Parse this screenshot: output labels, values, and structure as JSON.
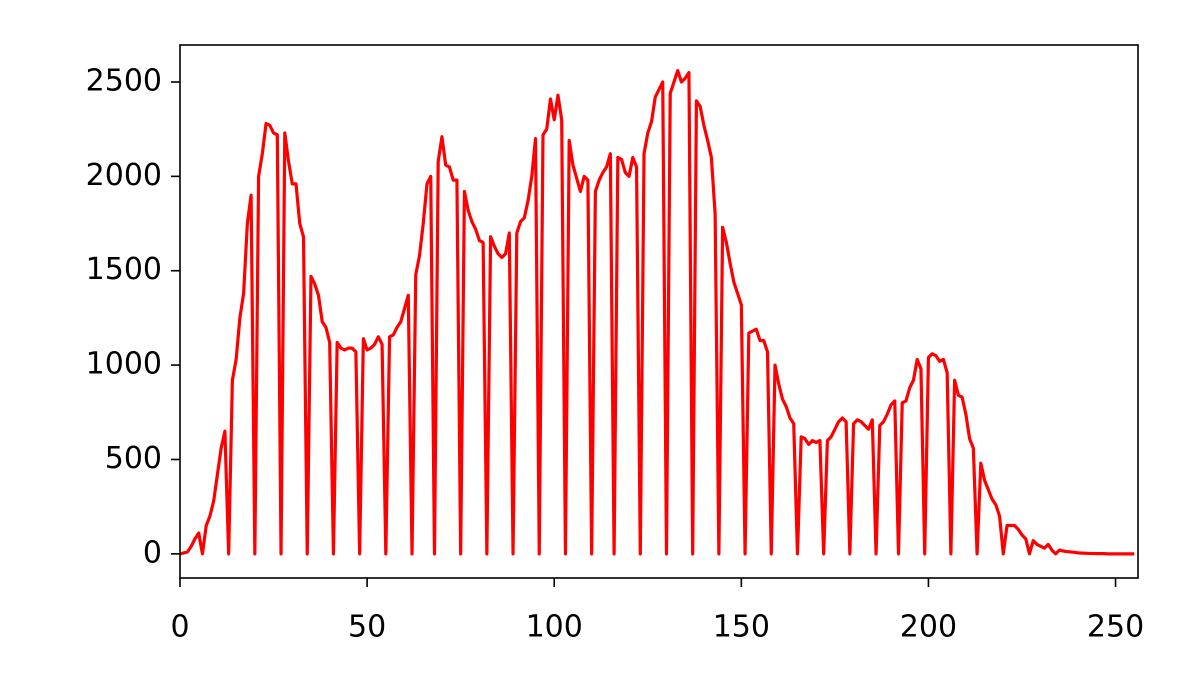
{
  "chart_data": {
    "type": "line",
    "color": "#ff0000",
    "x": [
      0,
      1,
      2,
      3,
      4,
      5,
      6,
      7,
      8,
      9,
      10,
      11,
      12,
      13,
      14,
      15,
      16,
      17,
      18,
      19,
      20,
      21,
      22,
      23,
      24,
      25,
      26,
      27,
      28,
      29,
      30,
      31,
      32,
      33,
      34,
      35,
      36,
      37,
      38,
      39,
      40,
      41,
      42,
      43,
      44,
      45,
      46,
      47,
      48,
      49,
      50,
      51,
      52,
      53,
      54,
      55,
      56,
      57,
      58,
      59,
      60,
      61,
      62,
      63,
      64,
      65,
      66,
      67,
      68,
      69,
      70,
      71,
      72,
      73,
      74,
      75,
      76,
      77,
      78,
      79,
      80,
      81,
      82,
      83,
      84,
      85,
      86,
      87,
      88,
      89,
      90,
      91,
      92,
      93,
      94,
      95,
      96,
      97,
      98,
      99,
      100,
      101,
      102,
      103,
      104,
      105,
      106,
      107,
      108,
      109,
      110,
      111,
      112,
      113,
      114,
      115,
      116,
      117,
      118,
      119,
      120,
      121,
      122,
      123,
      124,
      125,
      126,
      127,
      128,
      129,
      130,
      131,
      132,
      133,
      134,
      135,
      136,
      137,
      138,
      139,
      140,
      141,
      142,
      143,
      144,
      145,
      146,
      147,
      148,
      149,
      150,
      151,
      152,
      153,
      154,
      155,
      156,
      157,
      158,
      159,
      160,
      161,
      162,
      163,
      164,
      165,
      166,
      167,
      168,
      169,
      170,
      171,
      172,
      173,
      174,
      175,
      176,
      177,
      178,
      179,
      180,
      181,
      182,
      183,
      184,
      185,
      186,
      187,
      188,
      189,
      190,
      191,
      192,
      193,
      194,
      195,
      196,
      197,
      198,
      199,
      200,
      201,
      202,
      203,
      204,
      205,
      206,
      207,
      208,
      209,
      210,
      211,
      212,
      213,
      214,
      215,
      216,
      217,
      218,
      219,
      220,
      221,
      222,
      223,
      224,
      225,
      226,
      227,
      228,
      229,
      230,
      231,
      232,
      233,
      234,
      235,
      236,
      237,
      238,
      239,
      240,
      241,
      242,
      243,
      244,
      245,
      246,
      247,
      248,
      249,
      250,
      251,
      252,
      253,
      254,
      255
    ],
    "values": [
      0,
      5,
      10,
      40,
      80,
      110,
      0,
      150,
      200,
      280,
      420,
      560,
      650,
      0,
      920,
      1030,
      1250,
      1380,
      1750,
      1900,
      0,
      2000,
      2120,
      2280,
      2270,
      2230,
      2220,
      0,
      2230,
      2080,
      1960,
      1960,
      1750,
      1680,
      0,
      1470,
      1430,
      1370,
      1230,
      1200,
      1120,
      0,
      1120,
      1090,
      1080,
      1090,
      1090,
      1070,
      0,
      1140,
      1080,
      1090,
      1110,
      1150,
      1110,
      0,
      1150,
      1160,
      1200,
      1230,
      1300,
      1370,
      0,
      1480,
      1580,
      1750,
      1960,
      2000,
      0,
      2080,
      2210,
      2060,
      2050,
      1980,
      1980,
      0,
      1920,
      1820,
      1760,
      1720,
      1660,
      1650,
      0,
      1680,
      1630,
      1590,
      1570,
      1590,
      1700,
      0,
      1700,
      1760,
      1780,
      1870,
      2000,
      2200,
      0,
      2220,
      2250,
      2410,
      2300,
      2430,
      2300,
      0,
      2190,
      2060,
      1990,
      1920,
      2000,
      1980,
      0,
      1920,
      1980,
      2020,
      2050,
      2120,
      0,
      2100,
      2090,
      2020,
      2000,
      2100,
      2050,
      0,
      2120,
      2230,
      2290,
      2420,
      2460,
      2500,
      0,
      2440,
      2500,
      2560,
      2500,
      2520,
      2550,
      0,
      2400,
      2370,
      2270,
      2190,
      2100,
      1800,
      0,
      1730,
      1650,
      1540,
      1440,
      1380,
      1320,
      0,
      1170,
      1180,
      1190,
      1130,
      1130,
      1070,
      0,
      1000,
      900,
      820,
      780,
      720,
      690,
      0,
      620,
      610,
      580,
      600,
      590,
      600,
      0,
      600,
      620,
      660,
      700,
      720,
      700,
      0,
      690,
      710,
      700,
      680,
      660,
      710,
      0,
      680,
      700,
      740,
      790,
      810,
      0,
      800,
      810,
      880,
      920,
      1030,
      980,
      0,
      1040,
      1060,
      1050,
      1020,
      1030,
      960,
      0,
      920,
      840,
      830,
      740,
      610,
      560,
      0,
      480,
      390,
      340,
      290,
      260,
      200,
      0,
      150,
      150,
      150,
      130,
      100,
      80,
      0,
      70,
      50,
      40,
      30,
      50,
      20,
      0,
      20,
      15,
      12,
      10,
      8,
      5,
      4,
      3,
      2,
      2,
      1,
      1,
      1,
      0,
      0,
      0,
      0,
      0,
      0,
      0,
      0
    ],
    "xlim": [
      0,
      256
    ],
    "xticks": [
      0,
      50,
      100,
      150,
      200,
      250
    ],
    "ylim": [
      -128,
      2696
    ],
    "yticks": [
      0,
      500,
      1000,
      1500,
      2000,
      2500
    ]
  }
}
